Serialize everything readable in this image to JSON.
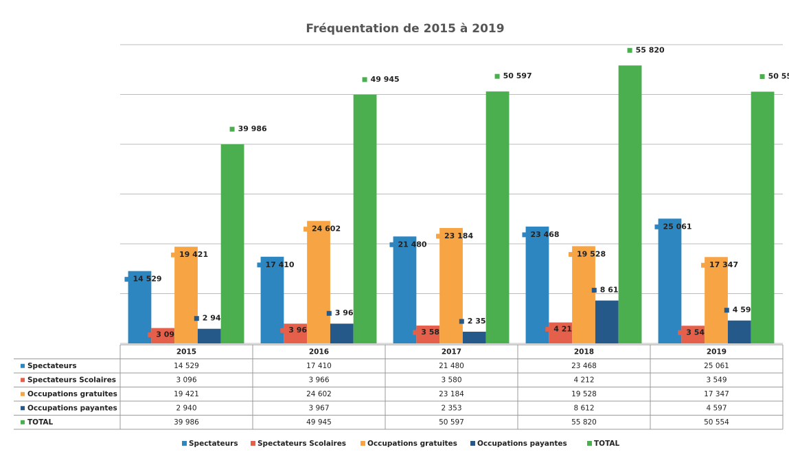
{
  "chart_data": {
    "type": "bar",
    "title": "Fréquentation de 2015 à 2019",
    "categories": [
      "2015",
      "2016",
      "2017",
      "2018",
      "2019"
    ],
    "series": [
      {
        "name": "Spectateurs",
        "color": "#2e86c1",
        "values": [
          14529,
          17410,
          21480,
          23468,
          25061
        ],
        "value_labels": [
          "14 529",
          "17 410",
          "21 480",
          "23 468",
          "25 061"
        ]
      },
      {
        "name": "Spectateurs Scolaires",
        "color": "#e5604a",
        "values": [
          3096,
          3966,
          3580,
          4212,
          3549
        ],
        "value_labels": [
          "3 096",
          "3 966",
          "3 580",
          "4 212",
          "3 549"
        ]
      },
      {
        "name": "Occupations gratuites",
        "color": "#f7a444",
        "values": [
          19421,
          24602,
          23184,
          19528,
          17347
        ],
        "value_labels": [
          "19 421",
          "24 602",
          "23 184",
          "19 528",
          "17 347"
        ]
      },
      {
        "name": "Occupations payantes",
        "color": "#24598a",
        "values": [
          2940,
          3967,
          2353,
          8612,
          4597
        ],
        "value_labels": [
          "2 940",
          "3 967",
          "2 353",
          "8 612",
          "4 597"
        ]
      },
      {
        "name": "TOTAL",
        "color": "#4bae4f",
        "values": [
          39986,
          49945,
          50597,
          55820,
          50554
        ],
        "value_labels": [
          "39 986",
          "49 945",
          "50 597",
          "55 820",
          "50 554"
        ]
      }
    ],
    "ylim": [
      0,
      60000
    ],
    "yticks": [
      0,
      10000,
      20000,
      30000,
      40000,
      50000,
      60000
    ],
    "grid": true
  }
}
